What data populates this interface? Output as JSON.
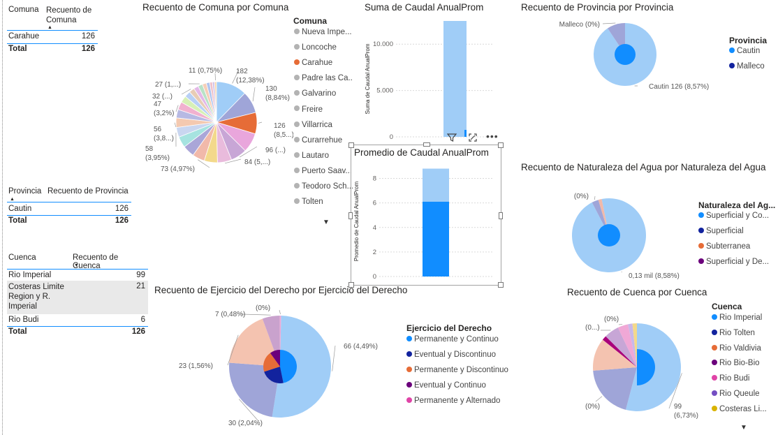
{
  "tables": {
    "comuna": {
      "headers": [
        "Comuna",
        "Recuento de Comuna"
      ],
      "rows": [
        {
          "label": "Carahue",
          "value": "126"
        }
      ],
      "total": {
        "label": "Total",
        "value": "126"
      }
    },
    "provincia": {
      "headers": [
        "Provincia",
        "Recuento de Provincia"
      ],
      "rows": [
        {
          "label": "Cautin",
          "value": "126"
        }
      ],
      "total": {
        "label": "Total",
        "value": "126"
      }
    },
    "cuenca": {
      "headers": [
        "Cuenca",
        "Recuento de Cuenca"
      ],
      "rows": [
        {
          "label": "Rio Imperial",
          "value": "99"
        },
        {
          "label": "Costeras Limite Region y R. Imperial",
          "value": "21"
        },
        {
          "label": "Rio Budi",
          "value": "6"
        }
      ],
      "total": {
        "label": "Total",
        "value": "126"
      }
    }
  },
  "chart_data": [
    {
      "id": "comuna",
      "type": "pie",
      "title": "Recuento de Comuna por Comuna",
      "legend_title": "Comuna",
      "legend": [
        "Nueva Impe...",
        "Loncoche",
        "Carahue",
        "Padre las Ca...",
        "Galvarino",
        "Freire",
        "Villarrica",
        "Curarrehue",
        "Lautaro",
        "Puerto Saav...",
        "Teodoro Sch...",
        "Tolten"
      ],
      "slices": [
        {
          "value": 182,
          "color": "#a0cdf7",
          "label": "182 (12,38%)"
        },
        {
          "value": 130,
          "color": "#9fa5d8",
          "label": "130 (8,84%)"
        },
        {
          "value": 126,
          "color": "#e66c37",
          "label": "126 (8,5...)"
        },
        {
          "value": 115,
          "color": "#e9a6dc",
          "label": ""
        },
        {
          "value": 96,
          "color": "#c8a6d6",
          "label": "96 (...)"
        },
        {
          "value": 84,
          "color": "#e9bbdc",
          "label": "84 (5,...)"
        },
        {
          "value": 78,
          "color": "#f3d98b",
          "label": ""
        },
        {
          "value": 73,
          "color": "#f1b9aa",
          "label": "73 (4,97%)"
        },
        {
          "value": 70,
          "color": "#aaa6d8",
          "label": ""
        },
        {
          "value": 65,
          "color": "#a6e3e0",
          "label": ""
        },
        {
          "value": 58,
          "color": "#c9d6f0",
          "label": "58 (3,95%)"
        },
        {
          "value": 56,
          "color": "#f4c9b0",
          "label": "56 (3,8...)"
        },
        {
          "value": 50,
          "color": "#b7b9e3",
          "label": ""
        },
        {
          "value": 47,
          "color": "#f1b1cf",
          "label": "47 (3,2%)"
        },
        {
          "value": 40,
          "color": "#d7f0b6",
          "label": ""
        },
        {
          "value": 36,
          "color": "#b8d0f5",
          "label": ""
        },
        {
          "value": 32,
          "color": "#e8ccb5",
          "label": "32 (...)"
        },
        {
          "value": 28,
          "color": "#e3b8e8",
          "label": ""
        },
        {
          "value": 27,
          "color": "#b9e2c7",
          "label": "27 (1,...)"
        },
        {
          "value": 24,
          "color": "#f6ceb7",
          "label": ""
        },
        {
          "value": 20,
          "color": "#b0c4ee",
          "label": ""
        },
        {
          "value": 16,
          "color": "#f0c0c8",
          "label": ""
        },
        {
          "value": 13,
          "color": "#d3c4ea",
          "label": ""
        },
        {
          "value": 11,
          "color": "#f7d6a8",
          "label": "11 (0,75%)"
        }
      ]
    },
    {
      "id": "suma",
      "type": "bar",
      "title": "Suma de Caudal AnualProm",
      "ylabel": "Suma de Caudal AnualProm",
      "yticks": [
        "0",
        "5.000",
        "10.000"
      ],
      "tick_values": [
        0,
        5000,
        10000
      ],
      "ylim": [
        0,
        12500
      ],
      "categories": [
        ""
      ],
      "values": [
        12500
      ],
      "colors": [
        "#a0cdf7"
      ]
    },
    {
      "id": "promedio",
      "type": "bar",
      "title": "Promedio de Caudal AnualProm",
      "ylabel": "Promedio de Caudal AnualProm",
      "yticks": [
        "0",
        "2",
        "4",
        "6",
        "8"
      ],
      "tick_values": [
        0,
        2,
        4,
        6,
        8
      ],
      "ylim": [
        0,
        9
      ],
      "series": [
        {
          "values": [
            6.1
          ],
          "color": "#118dff"
        },
        {
          "values": [
            8.8
          ],
          "color": "#a0cdf7"
        }
      ]
    },
    {
      "id": "provincia",
      "type": "pie",
      "title": "Recuento de Provincia por Provincia",
      "legend_title": "Provincia",
      "legend": [
        {
          "name": "Cautin",
          "color": "#118dff"
        },
        {
          "name": "Malleco",
          "color": "#12239e"
        }
      ],
      "slices": [
        {
          "value": 126,
          "color": "#a0cdf7",
          "label": "Cautin 126 (8,57%)"
        },
        {
          "value": 13,
          "color": "#9fa5d8",
          "label": "Malleco (0%)"
        }
      ],
      "inner_value": "Cautin"
    },
    {
      "id": "naturaleza",
      "type": "pie",
      "title": "Recuento de Naturaleza del Agua por Naturaleza del Agua",
      "legend_title": "Naturaleza del Ag...",
      "legend": [
        {
          "name": "Superficial y Co...",
          "color": "#118dff"
        },
        {
          "name": "Superficial",
          "color": "#12239e"
        },
        {
          "name": "Subterranea",
          "color": "#e66c37"
        },
        {
          "name": "Superficial y De...",
          "color": "#6b007b"
        }
      ],
      "slices": [
        {
          "value": 130,
          "color": "#a0cdf7",
          "label": "0,13 mil (8,58%)"
        },
        {
          "value": 4,
          "color": "#9fa5d8",
          "label": "(0%)"
        },
        {
          "value": 2,
          "color": "#f1b9aa",
          "label": ""
        }
      ]
    },
    {
      "id": "ejercicio",
      "type": "pie",
      "title": "Recuento de Ejercicio del Derecho por Ejercicio del Derecho",
      "legend_title": "Ejercicio del Derecho",
      "legend": [
        {
          "name": "Permanente y Continuo",
          "color": "#118dff"
        },
        {
          "name": "Eventual y Discontinuo",
          "color": "#12239e"
        },
        {
          "name": "Permanente y Discontinuo",
          "color": "#e66c37"
        },
        {
          "name": "Eventual y Continuo",
          "color": "#6b007b"
        },
        {
          "name": "Permanente y Alternado",
          "color": "#e044a7"
        }
      ],
      "slices": [
        {
          "value": 66,
          "color": "#a0cdf7",
          "label": "66 (4,49%)"
        },
        {
          "value": 30,
          "color": "#9fa5d8",
          "label": "30 (2,04%)"
        },
        {
          "value": 23,
          "color": "#f4c3b0",
          "label": "23 (1,56%)"
        },
        {
          "value": 7,
          "color": "#c9a2cd",
          "label": "7 (0,48%)"
        },
        {
          "value": 0.5,
          "color": "#f0a8d6",
          "label": "(0%)"
        }
      ]
    },
    {
      "id": "cuenca",
      "type": "pie",
      "title": "Recuento de Cuenca por Cuenca",
      "legend_title": "Cuenca",
      "legend": [
        {
          "name": "Rio Imperial",
          "color": "#118dff"
        },
        {
          "name": "Rio Tolten",
          "color": "#12239e"
        },
        {
          "name": "Rio Valdivia",
          "color": "#e66c37"
        },
        {
          "name": "Rio Bio-Bio",
          "color": "#6b007b"
        },
        {
          "name": "Rio Budi",
          "color": "#e044a7"
        },
        {
          "name": "Rio Queule",
          "color": "#744ec2"
        },
        {
          "name": "Costeras Li...",
          "color": "#d9b300"
        }
      ],
      "slices": [
        {
          "value": 99,
          "color": "#a0cdf7",
          "label": "99 (6,73%)"
        },
        {
          "value": 36,
          "color": "#9fa5d8",
          "label": "(0%)"
        },
        {
          "value": 22,
          "color": "#f4c3b0",
          "label": ""
        },
        {
          "value": 3,
          "color": "#a9007b",
          "label": ""
        },
        {
          "value": 10,
          "color": "#c7a6d6",
          "label": "(0...)"
        },
        {
          "value": 7,
          "color": "#f0a8d6",
          "label": "(0%)"
        },
        {
          "value": 3,
          "color": "#c8b8ea",
          "label": ""
        },
        {
          "value": 3,
          "color": "#f3d98b",
          "label": ""
        }
      ]
    }
  ]
}
